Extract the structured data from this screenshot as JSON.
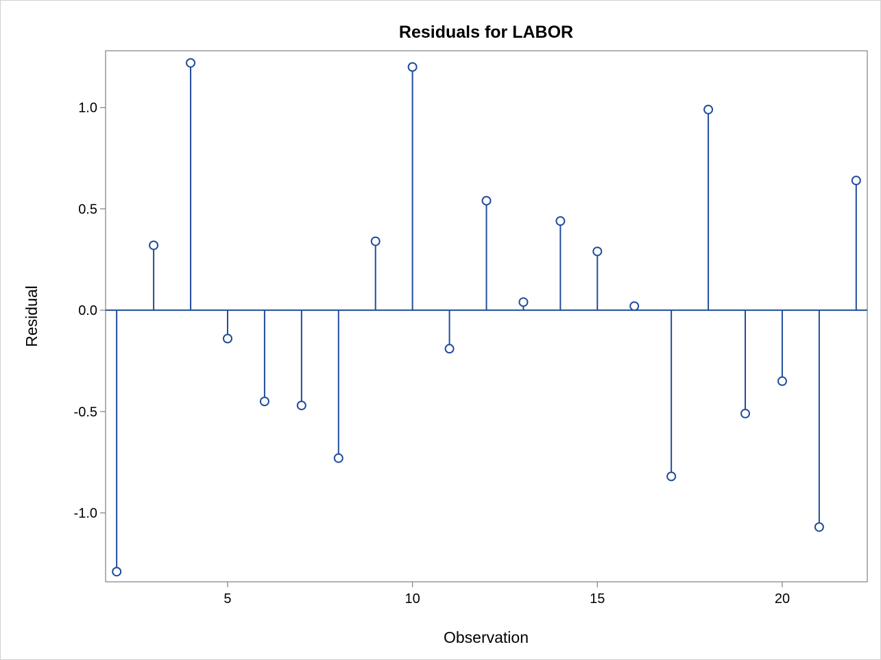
{
  "colors": {
    "series": "#1f4b9c",
    "axis": "#888888",
    "background": "#ffffff"
  },
  "chart_data": {
    "type": "scatter",
    "style": "needle",
    "title": "Residuals for LABOR",
    "xlabel": "Observation",
    "ylabel": "Residual",
    "xlim": [
      1.7,
      22.3
    ],
    "ylim": [
      -1.34,
      1.28
    ],
    "x_ticks": [
      5,
      10,
      15,
      20
    ],
    "x_tick_labels": [
      "5",
      "10",
      "15",
      "20"
    ],
    "y_ticks": [
      -1.0,
      -0.5,
      0.0,
      0.5,
      1.0
    ],
    "y_tick_labels": [
      "-1.0",
      "-0.5",
      "0.0",
      "0.5",
      "1.0"
    ],
    "reference_line": 0,
    "grid": false,
    "series": [
      {
        "marker": "open-circle",
        "x": [
          2,
          3,
          4,
          5,
          6,
          7,
          8,
          9,
          10,
          11,
          12,
          13,
          14,
          15,
          16,
          17,
          18,
          19,
          20,
          21,
          22
        ],
        "y": [
          -1.29,
          0.32,
          1.22,
          -0.14,
          -0.45,
          -0.47,
          -0.73,
          0.34,
          1.2,
          -0.19,
          0.54,
          0.04,
          0.44,
          0.29,
          0.02,
          -0.82,
          0.99,
          -0.51,
          -0.35,
          -1.07,
          0.64
        ]
      }
    ]
  }
}
